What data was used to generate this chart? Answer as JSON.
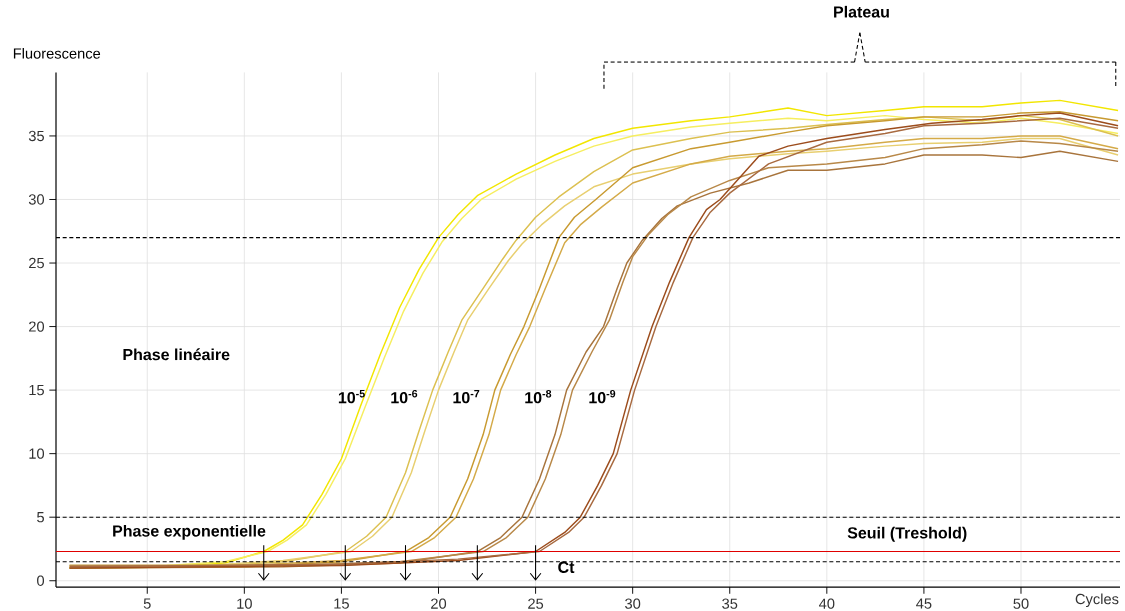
{
  "chart_data": {
    "type": "line",
    "ylabel": "Fluorescence",
    "xlabel": "Cycles",
    "xlim": [
      0.3,
      55.1
    ],
    "ylim": [
      -0.5,
      40
    ],
    "xticks": [
      5,
      10,
      15,
      20,
      25,
      30,
      35,
      40,
      45,
      50
    ],
    "yticks": [
      0,
      5,
      10,
      15,
      20,
      25,
      30,
      35
    ],
    "grid": true,
    "annotations": [
      "Phase linéaire",
      "Phase exponentielle",
      "Ct",
      "Plateau"
    ],
    "ref_lines": [
      {
        "axis": "y",
        "value": 2.3,
        "label": "Seuil (Treshold)",
        "color": "#e00000"
      },
      {
        "axis": "y",
        "value": 27,
        "label": null,
        "color": "#000000",
        "line_style": "dashed"
      },
      {
        "axis": "y",
        "value": 5,
        "label": null,
        "color": "#000000",
        "line_style": "dashed"
      },
      {
        "axis": "y",
        "value": 1.5,
        "label": null,
        "color": "#000000",
        "line_style": "dashed"
      }
    ],
    "series": [
      {
        "name": "10$^{-5}$",
        "color": "#f2e600",
        "x": [
          1,
          6,
          9,
          11,
          12,
          13,
          14,
          15,
          16,
          17,
          18,
          19,
          20,
          21,
          22,
          24,
          26,
          28,
          30,
          33,
          35,
          38,
          40,
          43,
          45,
          48,
          50,
          52,
          55
        ],
        "values": [
          1.0,
          1.1,
          1.4,
          2.3,
          3.2,
          4.4,
          6.8,
          9.6,
          13.8,
          17.8,
          21.5,
          24.5,
          27,
          28.8,
          30.3,
          32,
          33.5,
          34.8,
          35.6,
          36.2,
          36.5,
          37.2,
          36.6,
          37,
          37.3,
          37.3,
          37.6,
          37.8,
          37
        ]
      },
      {
        "color": "#f6ee60",
        "x": [
          1,
          6,
          9,
          11.2,
          12.2,
          13.2,
          14.2,
          15.2,
          16.2,
          17.2,
          18.2,
          19.2,
          20.2,
          21.2,
          22.2,
          24,
          26,
          28,
          30,
          33,
          35,
          38,
          40,
          43,
          45,
          48,
          50,
          52,
          55
        ],
        "values": [
          1.1,
          1.2,
          1.5,
          2.3,
          3.2,
          4.4,
          6.8,
          9.6,
          13.6,
          17.5,
          21.2,
          24.2,
          26.7,
          28.5,
          30,
          31.6,
          33,
          34.2,
          35,
          35.7,
          36,
          36.4,
          36.2,
          36.6,
          36.3,
          36,
          36.4,
          36,
          35.2
        ]
      },
      {
        "name": "10$^{-6}$",
        "color": "#dcc050",
        "x": [
          1,
          8,
          12,
          15.2,
          16.3,
          17.3,
          18.3,
          19,
          19.7,
          20.5,
          21.2,
          22.3,
          23.3,
          24,
          25,
          26.2,
          28,
          30,
          33,
          35,
          38,
          40,
          43,
          45,
          48,
          50,
          52,
          55
        ],
        "values": [
          1.0,
          1.1,
          1.5,
          2.3,
          3.5,
          5,
          8.5,
          11.8,
          15,
          18,
          20.5,
          23,
          25.3,
          26.8,
          28.6,
          30.2,
          32.2,
          33.9,
          34.8,
          35.3,
          35.6,
          35.9,
          36.3,
          36.5,
          36.2,
          36.6,
          36.3,
          35
        ]
      },
      {
        "color": "#e8cf70",
        "x": [
          1,
          8,
          12,
          15.5,
          16.6,
          17.6,
          18.6,
          19.3,
          20,
          20.8,
          21.5,
          22.6,
          23.6,
          24.3,
          25.3,
          26.5,
          28,
          30,
          33,
          35,
          38,
          40,
          43,
          45,
          48,
          50,
          52,
          55
        ],
        "values": [
          1.2,
          1.2,
          1.6,
          2.3,
          3.5,
          5,
          8.5,
          11.8,
          15,
          18,
          20.5,
          23,
          25.2,
          26.5,
          28,
          29.5,
          31,
          32,
          32.8,
          33.2,
          33.6,
          33.8,
          34.2,
          34.4,
          34.5,
          34.8,
          34.8,
          33.5
        ]
      },
      {
        "name": "10$^{-7}$",
        "color": "#c89a30",
        "x": [
          1,
          10,
          15,
          18.3,
          19.5,
          20.6,
          21.5,
          22.3,
          22.9,
          23.7,
          24.4,
          25.2,
          26.2,
          27,
          28.1,
          30,
          33,
          35,
          38,
          40,
          43,
          45,
          48,
          50,
          52,
          55
        ],
        "values": [
          1.0,
          1.1,
          1.5,
          2.3,
          3.4,
          5,
          8,
          11.5,
          15,
          17.8,
          20,
          23,
          27,
          28.6,
          30,
          32.5,
          34,
          34.5,
          35.3,
          35.8,
          36.2,
          36.5,
          36.5,
          36.8,
          36.9,
          36.2
        ]
      },
      {
        "color": "#d4aa48",
        "x": [
          1,
          10,
          15,
          18.6,
          19.8,
          20.9,
          21.8,
          22.6,
          23.2,
          24,
          24.7,
          25.5,
          26.5,
          27.3,
          28.4,
          30,
          33,
          35,
          38,
          40,
          43,
          45,
          48,
          50,
          52,
          55
        ],
        "values": [
          1.2,
          1.2,
          1.6,
          2.3,
          3.4,
          5,
          8,
          11.5,
          15,
          17.8,
          20,
          23,
          26.6,
          28,
          29.4,
          31.3,
          32.8,
          33.4,
          33.8,
          34,
          34.5,
          34.8,
          34.8,
          35,
          35,
          34
        ]
      },
      {
        "name": "10$^{-8}$",
        "color": "#a8743c",
        "x": [
          1,
          12,
          18,
          22,
          23.2,
          24.3,
          25.2,
          26,
          26.6,
          27.6,
          28.5,
          29.2,
          29.7,
          30.5,
          31.5,
          32.3,
          34,
          36,
          38,
          40,
          43,
          45,
          48,
          50,
          52,
          55
        ],
        "values": [
          1.0,
          1.1,
          1.4,
          2.3,
          3.4,
          5,
          8,
          11.5,
          15,
          18,
          20,
          23,
          25,
          26.8,
          28.5,
          29.5,
          30.5,
          31.3,
          32.3,
          32.3,
          32.8,
          33.5,
          33.5,
          33.3,
          33.8,
          33.0
        ]
      },
      {
        "color": "#b88848",
        "x": [
          1,
          12,
          18,
          22.3,
          23.5,
          24.6,
          25.5,
          26.3,
          26.9,
          27.9,
          28.8,
          29.5,
          30,
          30.8,
          31.8,
          33,
          35,
          37,
          40,
          43,
          45,
          48,
          50,
          52,
          55
        ],
        "values": [
          1.2,
          1.2,
          1.5,
          2.3,
          3.4,
          5,
          8,
          11.5,
          15,
          18,
          20.5,
          23.5,
          25.5,
          27.2,
          28.8,
          30.2,
          31.5,
          32.5,
          32.8,
          33.3,
          34,
          34.3,
          34.6,
          34.4,
          33.8
        ]
      },
      {
        "name": "10$^{-9}$",
        "color": "#9c4c1c",
        "x": [
          1,
          15,
          21,
          25,
          26.5,
          27.3,
          28.2,
          29,
          29.9,
          31,
          31.9,
          32.9,
          33.8,
          34.5,
          36.5,
          38,
          40,
          43,
          45.4,
          48,
          50,
          52,
          55
        ],
        "values": [
          1.0,
          1.2,
          1.6,
          2.3,
          3.8,
          5,
          7.5,
          10,
          15,
          20,
          23.5,
          27,
          29.2,
          30,
          33.4,
          34.2,
          34.8,
          35.5,
          36,
          36.3,
          36.6,
          36.8,
          35.8
        ]
      },
      {
        "color": "#a86a40",
        "x": [
          1,
          15,
          21,
          25.2,
          26.7,
          27.5,
          28.4,
          29.2,
          30.1,
          31.2,
          32.1,
          33.1,
          34,
          35,
          37,
          40,
          43,
          45,
          48,
          50,
          52,
          55
        ],
        "values": [
          1.1,
          1.3,
          1.7,
          2.3,
          3.8,
          5,
          7.5,
          10,
          15,
          20,
          23.5,
          27,
          29,
          30.5,
          32.8,
          34.5,
          35.2,
          35.8,
          36,
          36.2,
          36.4,
          35.6
        ]
      }
    ]
  }
}
